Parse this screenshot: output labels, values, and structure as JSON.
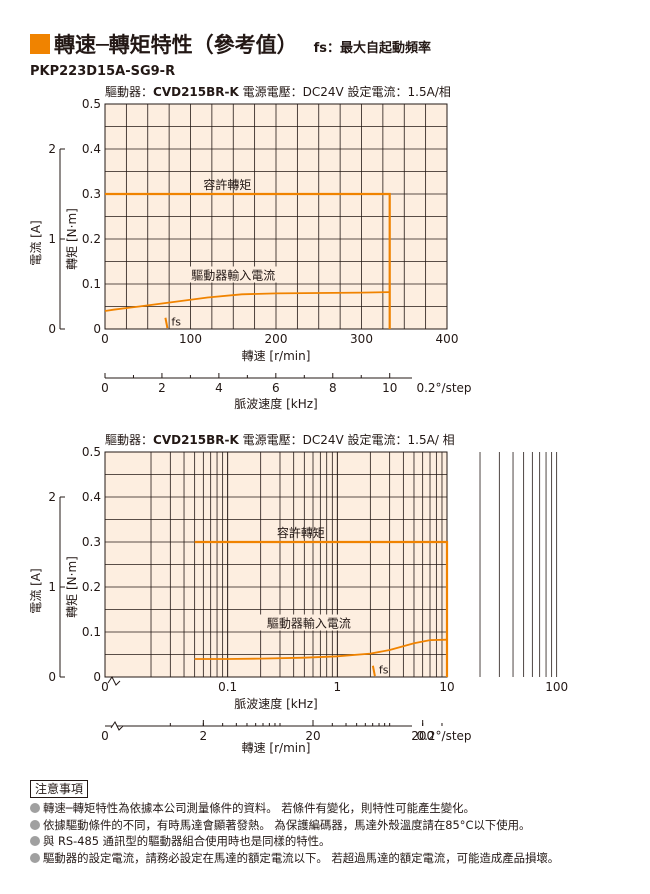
{
  "header": {
    "title": "轉速─轉矩特性（參考值）",
    "note": "fs：最大自起動頻率",
    "model": "PKP223D15A-SG9-R",
    "accent_color": "#f08300"
  },
  "chart_data": [
    {
      "type": "line",
      "xscale": "linear",
      "condition": {
        "driver_label": "驅動器：",
        "driver_model": "CVD215BR-K",
        "voltage": "電源電壓：DC24V",
        "current": "設定電流：1.5A/相"
      },
      "xlabel": "轉速 [r/min]",
      "ylabel": "轉矩 [N·m]",
      "ylabel2": "電流 [A]",
      "xlim": [
        0,
        400
      ],
      "ylim": [
        0,
        0.5
      ],
      "x_ticks": [
        "0",
        "100",
        "200",
        "300",
        "400"
      ],
      "y_ticks": [
        "0",
        "0.1",
        "0.2",
        "0.3",
        "0.4",
        "0.5"
      ],
      "current_axis": {
        "ticks": [
          "0",
          "1",
          "2"
        ],
        "range": [
          0,
          2.5
        ]
      },
      "secondary_axis": {
        "label": "脈波速度 [kHz]",
        "ticks": [
          "0",
          "2",
          "4",
          "6",
          "8",
          "10"
        ],
        "unit_note": "0.2°/step",
        "range_rpm": [
          0,
          400
        ]
      },
      "series": [
        {
          "name": "容許轉矩",
          "x": [
            0,
            333,
            333
          ],
          "y": [
            0.3,
            0.3,
            0
          ]
        },
        {
          "name": "驅動器輸入電流",
          "x": [
            0,
            10,
            40,
            80,
            120,
            160,
            200,
            250,
            300,
            333
          ],
          "y": [
            0.04,
            0.043,
            0.05,
            0.06,
            0.07,
            0.077,
            0.079,
            0.08,
            0.081,
            0.082
          ]
        }
      ],
      "fs": {
        "label": "fs",
        "x": 73
      },
      "grid": true,
      "background": "#fdeee0",
      "line_color": "#f08300"
    },
    {
      "type": "line",
      "xscale": "log",
      "condition": {
        "driver_label": "驅動器：",
        "driver_model": "CVD215BR-K",
        "voltage": "電源電壓：DC24V",
        "current": "設定電流：1.5A/ 相"
      },
      "xlabel": "脈波速度 [kHz]",
      "ylabel": "轉矩 [N·m]",
      "ylabel2": "電流 [A]",
      "xlim": [
        0.01,
        100
      ],
      "ylim": [
        0,
        0.5
      ],
      "x_ticks": [
        "0",
        "0.1",
        "1",
        "10",
        "100"
      ],
      "y_ticks": [
        "0",
        "0.1",
        "0.2",
        "0.3",
        "0.4",
        "0.5"
      ],
      "current_axis": {
        "ticks": [
          "0",
          "1",
          "2"
        ],
        "range": [
          0,
          2.5
        ]
      },
      "secondary_axis": {
        "label": "轉速 [r/min]",
        "ticks": [
          "0",
          "2",
          "20",
          "200"
        ],
        "unit_note": "0.2°/step"
      },
      "series": [
        {
          "name": "容許轉矩",
          "x": [
            0.05,
            10,
            10
          ],
          "y": [
            0.3,
            0.3,
            0
          ]
        },
        {
          "name": "驅動器輸入電流",
          "x": [
            0.05,
            0.1,
            0.2,
            0.5,
            1,
            2,
            3,
            5,
            7,
            10
          ],
          "y": [
            0.04,
            0.04,
            0.041,
            0.043,
            0.046,
            0.052,
            0.06,
            0.075,
            0.082,
            0.083
          ]
        }
      ],
      "fs": {
        "label": "fs",
        "x": 2.2
      },
      "grid": true,
      "background": "#fdeee0",
      "line_color": "#f08300"
    }
  ],
  "notes": {
    "heading": "注意事項",
    "items": [
      "轉速─轉矩特性為依據本公司測量條件的資料。 若條件有變化，則特性可能產生變化。",
      "依據驅動條件的不同，有時馬達會顯著發熱。 為保護編碼器，馬達外殼溫度請在85°C以下使用。",
      "與 RS-485 通訊型的驅動器組合使用時也是同樣的特性。",
      "驅動器的設定電流，請務必設定在馬達的額定電流以下。 若超過馬達的額定電流，可能造成產品損壞。"
    ]
  }
}
